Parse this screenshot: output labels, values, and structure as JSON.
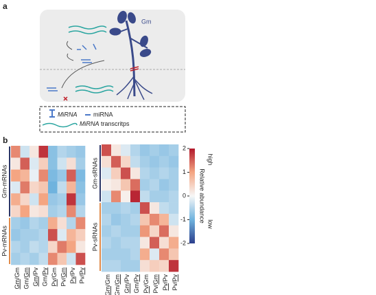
{
  "panel_a": {
    "label": "a",
    "species": "Gm",
    "legend": {
      "hairpin": "MiRNA",
      "mature": "miRNA",
      "transcript_italic": "MiRNA",
      "transcript_text": "transcritps"
    }
  },
  "panel_b": {
    "label": "b",
    "columns": [
      {
        "scion": "Gm",
        "separator": "/",
        "rootstock": "Gm",
        "underline": "scion"
      },
      {
        "scion": "Gm",
        "separator": "/",
        "rootstock": "Gm",
        "underline": "rootstock"
      },
      {
        "scion": "Gm",
        "separator": "/",
        "rootstock": "Pv",
        "underline": "scion"
      },
      {
        "scion": "Gm",
        "separator": "/",
        "rootstock": "Pv",
        "underline": "rootstock"
      },
      {
        "scion": "Pv",
        "separator": "/",
        "rootstock": "Gm",
        "underline": "scion"
      },
      {
        "scion": "Pv",
        "separator": "/",
        "rootstock": "Gm",
        "underline": "rootstock"
      },
      {
        "scion": "Pv",
        "separator": "/",
        "rootstock": "Pv",
        "underline": "scion"
      },
      {
        "scion": "Pv",
        "separator": "/",
        "rootstock": "Pv",
        "underline": "rootstock"
      }
    ],
    "heatmaps": [
      {
        "groups": [
          {
            "name": "Gm-mRNAs",
            "color": "#2b3566",
            "rows": [
              [
                1.2,
                -0.3,
                0.2,
                1.8,
                -0.8,
                -0.5,
                -0.6,
                -0.7
              ],
              [
                0.2,
                1.5,
                -0.2,
                0.5,
                -0.8,
                -0.3,
                0.3,
                -0.6
              ],
              [
                1.0,
                0.8,
                -0.1,
                1.2,
                -0.9,
                -0.7,
                1.5,
                -0.9
              ],
              [
                -0.2,
                1.3,
                0.4,
                0.6,
                -1.0,
                -0.4,
                0.8,
                -0.8
              ],
              [
                0.9,
                0.4,
                -0.3,
                1.0,
                -0.7,
                -0.6,
                1.8,
                -0.7
              ],
              [
                0.4,
                1.0,
                0.2,
                0.3,
                -0.6,
                -0.5,
                1.2,
                -0.5
              ]
            ]
          },
          {
            "name": "Pv-mRNAs",
            "color": "#e08a4a",
            "rows": [
              [
                -0.6,
                -0.7,
                -0.5,
                -0.6,
                0.9,
                0.3,
                -0.5,
                1.2
              ],
              [
                -0.7,
                -0.6,
                -0.6,
                -0.5,
                1.6,
                -0.2,
                0.8,
                0.5
              ],
              [
                -0.5,
                -0.6,
                -0.4,
                -0.5,
                0.4,
                1.3,
                1.0,
                0.2
              ],
              [
                -0.6,
                -0.5,
                -0.6,
                -0.4,
                1.2,
                0.6,
                -0.3,
                1.6
              ]
            ]
          }
        ]
      },
      {
        "groups": [
          {
            "name": "Gm-sRNAs",
            "color": "#2b3566",
            "rows": [
              [
                1.6,
                0.2,
                -0.2,
                -0.5,
                -0.7,
                -0.6,
                -0.7,
                -0.6
              ],
              [
                0.3,
                1.5,
                0.4,
                -0.4,
                -0.6,
                -0.7,
                -0.6,
                -0.7
              ],
              [
                -0.2,
                0.5,
                1.6,
                0.2,
                -0.5,
                -0.6,
                -0.5,
                -0.6
              ],
              [
                0.1,
                0.2,
                0.6,
                1.4,
                -0.6,
                -0.5,
                -0.7,
                -0.6
              ],
              [
                -0.3,
                1.2,
                0.1,
                1.9,
                -0.4,
                -0.6,
                -0.6,
                -0.5
              ]
            ]
          },
          {
            "name": "Pv-sRNAs",
            "color": "#e08a4a",
            "rows": [
              [
                -0.6,
                -0.6,
                -0.5,
                -0.6,
                1.6,
                0.2,
                -0.4,
                -0.5
              ],
              [
                -0.5,
                -0.7,
                -0.6,
                -0.5,
                0.6,
                1.2,
                0.8,
                -0.3
              ],
              [
                -0.6,
                -0.5,
                -0.6,
                -0.6,
                1.1,
                0.4,
                1.4,
                0.2
              ],
              [
                -0.5,
                -0.6,
                -0.5,
                -0.5,
                0.2,
                1.5,
                0.3,
                0.9
              ],
              [
                -0.6,
                -0.6,
                -0.6,
                -0.5,
                0.9,
                -0.2,
                1.2,
                0.6
              ],
              [
                -0.5,
                -0.5,
                -0.6,
                -0.6,
                0.3,
                0.5,
                0.4,
                1.8
              ]
            ]
          }
        ]
      }
    ],
    "colorbar": {
      "title": "Relative abundance",
      "high": "high",
      "low": "low",
      "lim": [
        -2,
        2
      ],
      "ticks": [
        2,
        1,
        0,
        -1,
        -2
      ],
      "colors": [
        "#2c3e8c",
        "#6fb3de",
        "#f7f7f7",
        "#f4a582",
        "#b2182b"
      ]
    }
  }
}
